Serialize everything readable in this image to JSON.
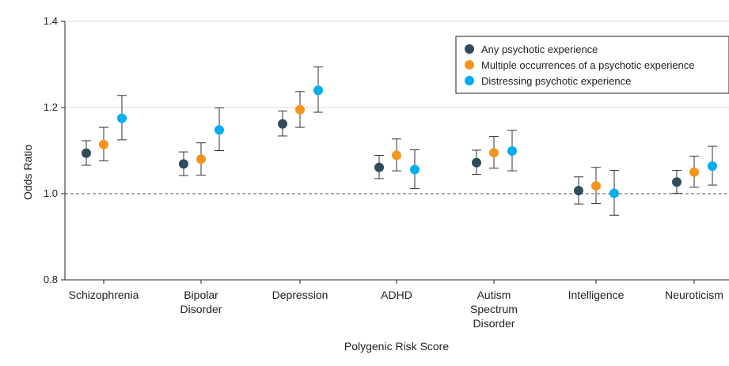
{
  "chart_data": {
    "type": "scatter",
    "xlabel": "Polygenic Risk Score",
    "ylabel": "Odds Ratio",
    "ylim": [
      0.8,
      1.4
    ],
    "yticks": [
      "0.8",
      "1.0",
      "1.2",
      "1.4"
    ],
    "reference_line": 1.0,
    "grid": "horizontal",
    "legend_position": "top-right",
    "categories": [
      [
        "Schizophrenia"
      ],
      [
        "Bipolar",
        "Disorder"
      ],
      [
        "Depression"
      ],
      [
        "ADHD"
      ],
      [
        "Autism",
        "Spectrum",
        "Disorder"
      ],
      [
        "Intelligence"
      ],
      [
        "Neuroticism"
      ]
    ],
    "series": [
      {
        "name": "Any psychotic experience",
        "color": "#2e4c5a",
        "values": [
          1.094,
          1.069,
          1.162,
          1.061,
          1.072,
          1.007,
          1.027
        ],
        "lower": [
          1.066,
          1.042,
          1.134,
          1.035,
          1.045,
          0.976,
          1.001
        ],
        "upper": [
          1.123,
          1.097,
          1.192,
          1.089,
          1.101,
          1.039,
          1.054
        ]
      },
      {
        "name": "Multiple occurrences of a psychotic experience",
        "color": "#f7941d",
        "values": [
          1.114,
          1.08,
          1.195,
          1.089,
          1.095,
          1.018,
          1.05
        ],
        "lower": [
          1.076,
          1.043,
          1.154,
          1.053,
          1.059,
          0.977,
          1.015
        ],
        "upper": [
          1.154,
          1.118,
          1.237,
          1.127,
          1.133,
          1.061,
          1.087
        ]
      },
      {
        "name": "Distressing psychotic experience",
        "color": "#00aeef",
        "values": [
          1.175,
          1.148,
          1.24,
          1.056,
          1.099,
          1.001,
          1.064
        ],
        "lower": [
          1.125,
          1.1,
          1.189,
          1.012,
          1.053,
          0.95,
          1.02
        ],
        "upper": [
          1.228,
          1.199,
          1.294,
          1.102,
          1.147,
          1.054,
          1.11
        ]
      }
    ]
  }
}
